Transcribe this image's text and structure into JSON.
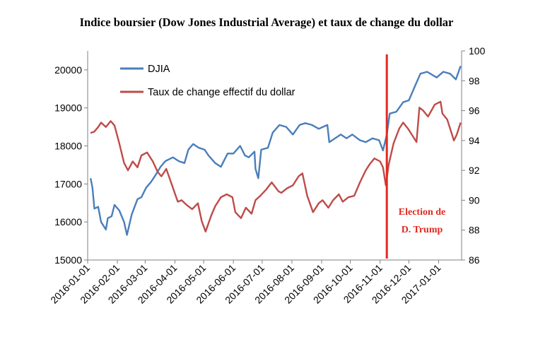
{
  "chart_data": {
    "type": "line",
    "title": "Indice boursier (Dow Jones Industrial Average) et taux de change du dollar",
    "x_ticks": [
      "2016-01-01",
      "2016-02-01",
      "2016-03-01",
      "2016-04-01",
      "2016-05-01",
      "2016-06-01",
      "2016-07-01",
      "2016-08-01",
      "2016-09-01",
      "2016-10-01",
      "2016-11-01",
      "2016-12-01",
      "2017-01-01"
    ],
    "x_range": [
      "2016-01-01",
      "2017-01-25"
    ],
    "y_left": {
      "ticks": [
        "15000",
        "16000",
        "17000",
        "18000",
        "19000",
        "20000"
      ],
      "range": [
        15000,
        20500
      ]
    },
    "y_right": {
      "ticks": [
        "86",
        "88",
        "90",
        "92",
        "94",
        "96",
        "98",
        "100"
      ],
      "range": [
        86,
        100
      ]
    },
    "grid": false,
    "legend_position": "top-left",
    "series": [
      {
        "name": "DJIA",
        "axis": "left",
        "color": "#4a7ebb",
        "points": [
          [
            "2016-01-04",
            17150
          ],
          [
            "2016-01-06",
            16900
          ],
          [
            "2016-01-08",
            16350
          ],
          [
            "2016-01-12",
            16400
          ],
          [
            "2016-01-15",
            16000
          ],
          [
            "2016-01-20",
            15800
          ],
          [
            "2016-01-22",
            16100
          ],
          [
            "2016-01-26",
            16150
          ],
          [
            "2016-01-29",
            16450
          ],
          [
            "2016-02-03",
            16300
          ],
          [
            "2016-02-08",
            16000
          ],
          [
            "2016-02-11",
            15660
          ],
          [
            "2016-02-16",
            16200
          ],
          [
            "2016-02-22",
            16600
          ],
          [
            "2016-02-26",
            16650
          ],
          [
            "2016-03-02",
            16900
          ],
          [
            "2016-03-07",
            17050
          ],
          [
            "2016-03-11",
            17200
          ],
          [
            "2016-03-17",
            17450
          ],
          [
            "2016-03-22",
            17600
          ],
          [
            "2016-03-30",
            17700
          ],
          [
            "2016-04-05",
            17600
          ],
          [
            "2016-04-11",
            17550
          ],
          [
            "2016-04-15",
            17900
          ],
          [
            "2016-04-20",
            18050
          ],
          [
            "2016-04-26",
            17950
          ],
          [
            "2016-05-02",
            17900
          ],
          [
            "2016-05-06",
            17750
          ],
          [
            "2016-05-13",
            17550
          ],
          [
            "2016-05-19",
            17450
          ],
          [
            "2016-05-26",
            17800
          ],
          [
            "2016-06-01",
            17800
          ],
          [
            "2016-06-08",
            18000
          ],
          [
            "2016-06-13",
            17750
          ],
          [
            "2016-06-17",
            17700
          ],
          [
            "2016-06-23",
            17850
          ],
          [
            "2016-06-24",
            17400
          ],
          [
            "2016-06-27",
            17150
          ],
          [
            "2016-06-30",
            17900
          ],
          [
            "2016-07-07",
            17950
          ],
          [
            "2016-07-12",
            18350
          ],
          [
            "2016-07-19",
            18550
          ],
          [
            "2016-07-26",
            18500
          ],
          [
            "2016-08-02",
            18300
          ],
          [
            "2016-08-09",
            18550
          ],
          [
            "2016-08-15",
            18600
          ],
          [
            "2016-08-22",
            18550
          ],
          [
            "2016-08-29",
            18450
          ],
          [
            "2016-09-07",
            18550
          ],
          [
            "2016-09-09",
            18100
          ],
          [
            "2016-09-15",
            18200
          ],
          [
            "2016-09-21",
            18300
          ],
          [
            "2016-09-27",
            18200
          ],
          [
            "2016-10-03",
            18300
          ],
          [
            "2016-10-11",
            18150
          ],
          [
            "2016-10-17",
            18100
          ],
          [
            "2016-10-24",
            18200
          ],
          [
            "2016-10-31",
            18150
          ],
          [
            "2016-11-04",
            17880
          ],
          [
            "2016-11-08",
            18300
          ],
          [
            "2016-11-11",
            18850
          ],
          [
            "2016-11-18",
            18900
          ],
          [
            "2016-11-25",
            19150
          ],
          [
            "2016-12-01",
            19200
          ],
          [
            "2016-12-07",
            19550
          ],
          [
            "2016-12-13",
            19900
          ],
          [
            "2016-12-20",
            19950
          ],
          [
            "2016-12-30",
            19800
          ],
          [
            "2017-01-06",
            19950
          ],
          [
            "2017-01-13",
            19900
          ],
          [
            "2017-01-19",
            19750
          ],
          [
            "2017-01-24",
            20100
          ]
        ]
      },
      {
        "name": "Taux de change effectif du dollar",
        "axis": "right",
        "color": "#be4b48",
        "points": [
          [
            "2016-01-04",
            94.5
          ],
          [
            "2016-01-08",
            94.6
          ],
          [
            "2016-01-12",
            94.9
          ],
          [
            "2016-01-15",
            95.2
          ],
          [
            "2016-01-20",
            94.9
          ],
          [
            "2016-01-25",
            95.3
          ],
          [
            "2016-01-29",
            95.0
          ],
          [
            "2016-02-03",
            93.8
          ],
          [
            "2016-02-08",
            92.5
          ],
          [
            "2016-02-12",
            92.0
          ],
          [
            "2016-02-17",
            92.6
          ],
          [
            "2016-02-22",
            92.2
          ],
          [
            "2016-02-26",
            93.0
          ],
          [
            "2016-03-03",
            93.2
          ],
          [
            "2016-03-09",
            92.6
          ],
          [
            "2016-03-14",
            91.9
          ],
          [
            "2016-03-18",
            91.6
          ],
          [
            "2016-03-23",
            92.1
          ],
          [
            "2016-03-29",
            91.0
          ],
          [
            "2016-04-04",
            89.9
          ],
          [
            "2016-04-08",
            90.0
          ],
          [
            "2016-04-13",
            89.7
          ],
          [
            "2016-04-19",
            89.4
          ],
          [
            "2016-04-25",
            89.8
          ],
          [
            "2016-04-29",
            88.6
          ],
          [
            "2016-05-03",
            87.9
          ],
          [
            "2016-05-09",
            89.0
          ],
          [
            "2016-05-13",
            89.6
          ],
          [
            "2016-05-19",
            90.2
          ],
          [
            "2016-05-25",
            90.4
          ],
          [
            "2016-05-31",
            90.2
          ],
          [
            "2016-06-03",
            89.2
          ],
          [
            "2016-06-09",
            88.8
          ],
          [
            "2016-06-14",
            89.5
          ],
          [
            "2016-06-20",
            89.1
          ],
          [
            "2016-06-24",
            90.0
          ],
          [
            "2016-06-29",
            90.3
          ],
          [
            "2016-07-05",
            90.7
          ],
          [
            "2016-07-11",
            91.2
          ],
          [
            "2016-07-18",
            90.6
          ],
          [
            "2016-07-21",
            90.5
          ],
          [
            "2016-07-27",
            90.8
          ],
          [
            "2016-08-02",
            91.0
          ],
          [
            "2016-08-08",
            91.6
          ],
          [
            "2016-08-12",
            91.8
          ],
          [
            "2016-08-17",
            90.3
          ],
          [
            "2016-08-23",
            89.2
          ],
          [
            "2016-08-29",
            89.8
          ],
          [
            "2016-09-02",
            90.0
          ],
          [
            "2016-09-08",
            89.5
          ],
          [
            "2016-09-13",
            90.0
          ],
          [
            "2016-09-19",
            90.4
          ],
          [
            "2016-09-23",
            89.9
          ],
          [
            "2016-09-29",
            90.2
          ],
          [
            "2016-10-05",
            90.3
          ],
          [
            "2016-10-11",
            91.2
          ],
          [
            "2016-10-17",
            92.0
          ],
          [
            "2016-10-21",
            92.4
          ],
          [
            "2016-10-26",
            92.8
          ],
          [
            "2016-11-01",
            92.6
          ],
          [
            "2016-11-04",
            92.2
          ],
          [
            "2016-11-07",
            91.0
          ],
          [
            "2016-11-10",
            92.4
          ],
          [
            "2016-11-15",
            93.8
          ],
          [
            "2016-11-21",
            94.8
          ],
          [
            "2016-11-25",
            95.2
          ],
          [
            "2016-11-30",
            94.8
          ],
          [
            "2016-12-05",
            94.3
          ],
          [
            "2016-12-09",
            93.9
          ],
          [
            "2016-12-12",
            96.2
          ],
          [
            "2016-12-16",
            96.0
          ],
          [
            "2016-12-21",
            95.6
          ],
          [
            "2016-12-28",
            96.4
          ],
          [
            "2017-01-03",
            96.6
          ],
          [
            "2017-01-05",
            95.8
          ],
          [
            "2017-01-10",
            95.4
          ],
          [
            "2017-01-13",
            94.8
          ],
          [
            "2017-01-17",
            94.0
          ],
          [
            "2017-01-20",
            94.4
          ],
          [
            "2017-01-24",
            95.2
          ]
        ]
      }
    ],
    "annotation": {
      "date": "2016-11-08",
      "line_color": "#e02a20",
      "lines": [
        "Election de",
        "D. Trump"
      ]
    }
  }
}
